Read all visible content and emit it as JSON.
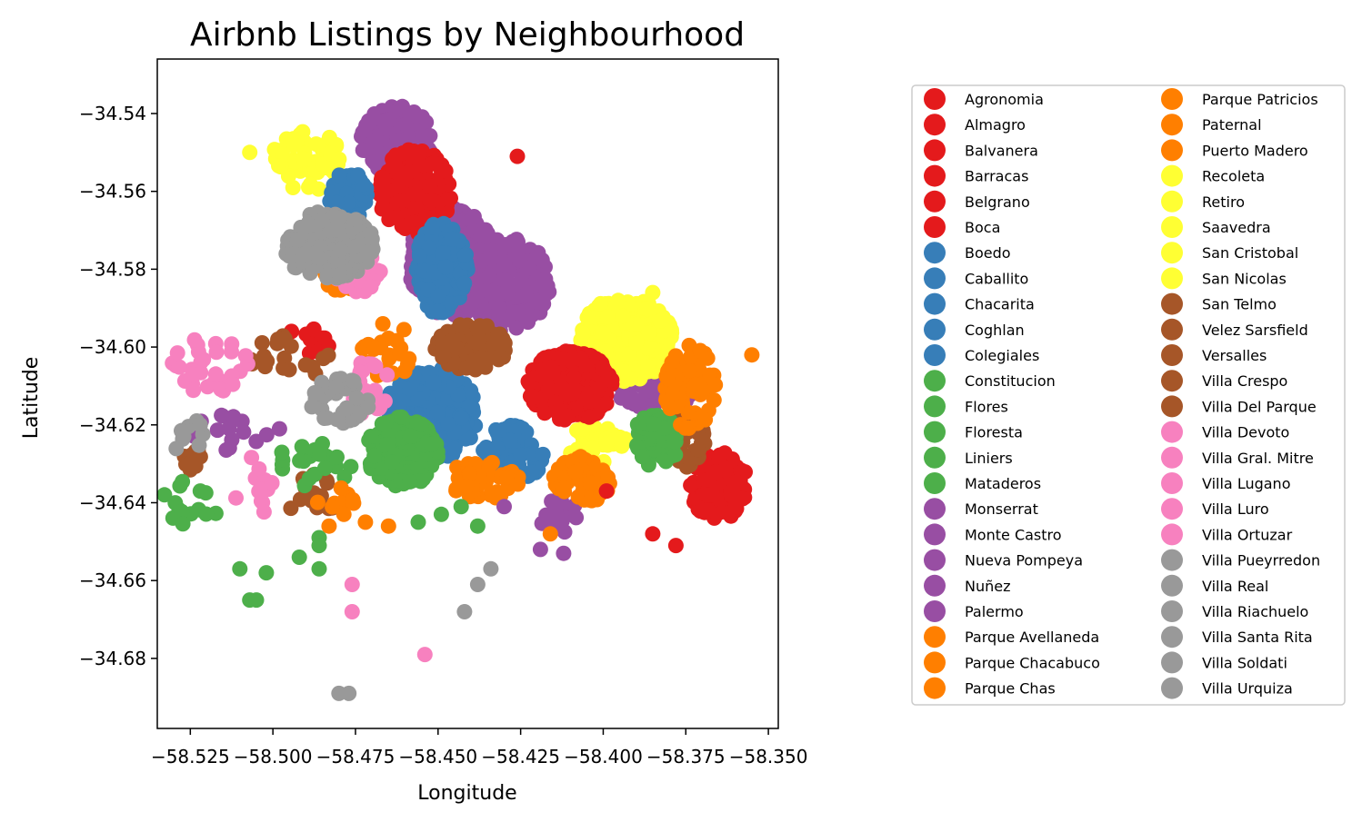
{
  "chart_data": {
    "type": "scatter",
    "title": "Airbnb Listings by Neighbourhood",
    "xlabel": "Longitude",
    "ylabel": "Latitude",
    "xlim": [
      -58.535,
      -58.347
    ],
    "ylim": [
      -34.698,
      -34.526
    ],
    "xticks": [
      -58.525,
      -58.5,
      -58.475,
      -58.45,
      -58.425,
      -58.4,
      -58.375,
      -58.35
    ],
    "xtick_labels": [
      "−58.525",
      "−58.500",
      "−58.475",
      "−58.450",
      "−58.425",
      "−58.400",
      "−58.375",
      "−58.350"
    ],
    "yticks": [
      -34.54,
      -34.56,
      -34.58,
      -34.6,
      -34.62,
      -34.64,
      -34.66,
      -34.68
    ],
    "ytick_labels": [
      "−34.54",
      "−34.56",
      "−34.58",
      "−34.60",
      "−34.62",
      "−34.64",
      "−34.66",
      "−34.68"
    ],
    "grid": false,
    "legend_placement": "outside right, two columns",
    "colors": {
      "red": "#e41a1c",
      "blue": "#377eb8",
      "green": "#4daf4a",
      "purple": "#984ea3",
      "orange": "#ff7f00",
      "yellow": "#ffff33",
      "brown": "#a65628",
      "pink": "#f781bf",
      "grey": "#999999"
    },
    "series": [
      {
        "name": "Agronomia",
        "color": "red"
      },
      {
        "name": "Almagro",
        "color": "red"
      },
      {
        "name": "Balvanera",
        "color": "red"
      },
      {
        "name": "Barracas",
        "color": "red"
      },
      {
        "name": "Belgrano",
        "color": "red"
      },
      {
        "name": "Boca",
        "color": "red"
      },
      {
        "name": "Boedo",
        "color": "blue"
      },
      {
        "name": "Caballito",
        "color": "blue"
      },
      {
        "name": "Chacarita",
        "color": "blue"
      },
      {
        "name": "Coghlan",
        "color": "blue"
      },
      {
        "name": "Colegiales",
        "color": "blue"
      },
      {
        "name": "Constitucion",
        "color": "green"
      },
      {
        "name": "Flores",
        "color": "green"
      },
      {
        "name": "Floresta",
        "color": "green"
      },
      {
        "name": "Liniers",
        "color": "green"
      },
      {
        "name": "Mataderos",
        "color": "green"
      },
      {
        "name": "Monserrat",
        "color": "purple"
      },
      {
        "name": "Monte Castro",
        "color": "purple"
      },
      {
        "name": "Nueva Pompeya",
        "color": "purple"
      },
      {
        "name": "Nuñez",
        "color": "purple"
      },
      {
        "name": "Palermo",
        "color": "purple"
      },
      {
        "name": "Parque Avellaneda",
        "color": "orange"
      },
      {
        "name": "Parque Chacabuco",
        "color": "orange"
      },
      {
        "name": "Parque Chas",
        "color": "orange"
      },
      {
        "name": "Parque Patricios",
        "color": "orange"
      },
      {
        "name": "Paternal",
        "color": "orange"
      },
      {
        "name": "Puerto Madero",
        "color": "orange"
      },
      {
        "name": "Recoleta",
        "color": "yellow"
      },
      {
        "name": "Retiro",
        "color": "yellow"
      },
      {
        "name": "Saavedra",
        "color": "yellow"
      },
      {
        "name": "San Cristobal",
        "color": "yellow"
      },
      {
        "name": "San Nicolas",
        "color": "yellow"
      },
      {
        "name": "San Telmo",
        "color": "brown"
      },
      {
        "name": "Velez Sarsfield",
        "color": "brown"
      },
      {
        "name": "Versalles",
        "color": "brown"
      },
      {
        "name": "Villa Crespo",
        "color": "brown"
      },
      {
        "name": "Villa Del Parque",
        "color": "brown"
      },
      {
        "name": "Villa Devoto",
        "color": "pink"
      },
      {
        "name": "Villa Gral. Mitre",
        "color": "pink"
      },
      {
        "name": "Villa Lugano",
        "color": "pink"
      },
      {
        "name": "Villa Luro",
        "color": "pink"
      },
      {
        "name": "Villa Ortuzar",
        "color": "pink"
      },
      {
        "name": "Villa Pueyrredon",
        "color": "grey"
      },
      {
        "name": "Villa Real",
        "color": "grey"
      },
      {
        "name": "Villa Riachuelo",
        "color": "grey"
      },
      {
        "name": "Villa Santa Rita",
        "color": "grey"
      },
      {
        "name": "Villa Soldati",
        "color": "grey"
      },
      {
        "name": "Villa Urquiza",
        "color": "grey"
      }
    ],
    "clusters": [
      {
        "color": "purple",
        "x": -58.446,
        "y": -34.578,
        "rx": 0.013,
        "ry": 0.014,
        "n": 260
      },
      {
        "color": "purple",
        "x": -58.429,
        "y": -34.584,
        "rx": 0.013,
        "ry": 0.012,
        "n": 180
      },
      {
        "color": "purple",
        "x": -58.4625,
        "y": -34.547,
        "rx": 0.011,
        "ry": 0.009,
        "n": 130
      },
      {
        "color": "purple",
        "x": -58.384,
        "y": -34.612,
        "rx": 0.011,
        "ry": 0.004,
        "n": 60
      },
      {
        "color": "purple",
        "x": -58.414,
        "y": -34.643,
        "rx": 0.006,
        "ry": 0.005,
        "n": 14
      },
      {
        "color": "purple",
        "x": -58.512,
        "y": -34.622,
        "rx": 0.015,
        "ry": 0.006,
        "n": 14
      },
      {
        "color": "yellow",
        "x": -58.393,
        "y": -34.598,
        "rx": 0.014,
        "ry": 0.011,
        "n": 280
      },
      {
        "color": "yellow",
        "x": -58.49,
        "y": -34.552,
        "rx": 0.011,
        "ry": 0.008,
        "n": 50
      },
      {
        "color": "yellow",
        "x": -58.402,
        "y": -34.625,
        "rx": 0.009,
        "ry": 0.005,
        "n": 40
      },
      {
        "color": "red",
        "x": -58.457,
        "y": -34.56,
        "rx": 0.011,
        "ry": 0.011,
        "n": 200
      },
      {
        "color": "red",
        "x": -58.41,
        "y": -34.61,
        "rx": 0.013,
        "ry": 0.009,
        "n": 220
      },
      {
        "color": "red",
        "x": -58.365,
        "y": -34.636,
        "rx": 0.009,
        "ry": 0.009,
        "n": 120
      },
      {
        "color": "red",
        "x": -58.488,
        "y": -34.598,
        "rx": 0.008,
        "ry": 0.004,
        "n": 14
      },
      {
        "color": "blue",
        "x": -58.452,
        "y": -34.617,
        "rx": 0.014,
        "ry": 0.012,
        "n": 260
      },
      {
        "color": "blue",
        "x": -58.449,
        "y": -34.58,
        "rx": 0.008,
        "ry": 0.012,
        "n": 150
      },
      {
        "color": "blue",
        "x": -58.477,
        "y": -34.561,
        "rx": 0.006,
        "ry": 0.006,
        "n": 45
      },
      {
        "color": "blue",
        "x": -58.427,
        "y": -34.627,
        "rx": 0.01,
        "ry": 0.007,
        "n": 70
      },
      {
        "color": "brown",
        "x": -58.44,
        "y": -34.6,
        "rx": 0.011,
        "ry": 0.006,
        "n": 120
      },
      {
        "color": "brown",
        "x": -58.374,
        "y": -34.624,
        "rx": 0.005,
        "ry": 0.007,
        "n": 40
      },
      {
        "color": "brown",
        "x": -58.495,
        "y": -34.603,
        "rx": 0.012,
        "ry": 0.006,
        "n": 22
      },
      {
        "color": "brown",
        "x": -58.488,
        "y": -34.638,
        "rx": 0.008,
        "ry": 0.006,
        "n": 14
      },
      {
        "color": "brown",
        "x": -58.523,
        "y": -34.629,
        "rx": 0.004,
        "ry": 0.003,
        "n": 12
      },
      {
        "color": "green",
        "x": -58.461,
        "y": -34.627,
        "rx": 0.011,
        "ry": 0.009,
        "n": 160
      },
      {
        "color": "green",
        "x": -58.384,
        "y": -34.624,
        "rx": 0.007,
        "ry": 0.007,
        "n": 70
      },
      {
        "color": "green",
        "x": -58.487,
        "y": -34.63,
        "rx": 0.012,
        "ry": 0.006,
        "n": 22
      },
      {
        "color": "green",
        "x": -58.525,
        "y": -34.64,
        "rx": 0.009,
        "ry": 0.006,
        "n": 14
      },
      {
        "color": "orange",
        "x": -58.374,
        "y": -34.61,
        "rx": 0.008,
        "ry": 0.011,
        "n": 60
      },
      {
        "color": "orange",
        "x": -58.406,
        "y": -34.634,
        "rx": 0.009,
        "ry": 0.006,
        "n": 65
      },
      {
        "color": "orange",
        "x": -58.436,
        "y": -34.634,
        "rx": 0.011,
        "ry": 0.005,
        "n": 50
      },
      {
        "color": "orange",
        "x": -58.465,
        "y": -34.601,
        "rx": 0.008,
        "ry": 0.008,
        "n": 30
      },
      {
        "color": "orange",
        "x": -58.479,
        "y": -34.581,
        "rx": 0.006,
        "ry": 0.005,
        "n": 28
      },
      {
        "color": "orange",
        "x": -58.481,
        "y": -34.64,
        "rx": 0.006,
        "ry": 0.004,
        "n": 10
      },
      {
        "color": "pink",
        "x": -58.474,
        "y": -34.581,
        "rx": 0.007,
        "ry": 0.005,
        "n": 50
      },
      {
        "color": "pink",
        "x": -58.471,
        "y": -34.61,
        "rx": 0.006,
        "ry": 0.008,
        "n": 30
      },
      {
        "color": "pink",
        "x": -58.519,
        "y": -34.605,
        "rx": 0.012,
        "ry": 0.008,
        "n": 32
      },
      {
        "color": "pink",
        "x": -58.506,
        "y": -34.636,
        "rx": 0.006,
        "ry": 0.008,
        "n": 14
      },
      {
        "color": "grey",
        "x": -58.483,
        "y": -34.574,
        "rx": 0.014,
        "ry": 0.009,
        "n": 190
      },
      {
        "color": "grey",
        "x": -58.48,
        "y": -34.614,
        "rx": 0.01,
        "ry": 0.006,
        "n": 40
      },
      {
        "color": "grey",
        "x": -58.526,
        "y": -34.623,
        "rx": 0.005,
        "ry": 0.005,
        "n": 10
      }
    ],
    "outliers": [
      {
        "color": "red",
        "x": -58.426,
        "y": -34.551
      },
      {
        "color": "red",
        "x": -58.378,
        "y": -34.651
      },
      {
        "color": "red",
        "x": -58.385,
        "y": -34.648
      },
      {
        "color": "red",
        "x": -58.399,
        "y": -34.637
      },
      {
        "color": "purple",
        "x": -58.43,
        "y": -34.641
      },
      {
        "color": "purple",
        "x": -58.412,
        "y": -34.653
      },
      {
        "color": "purple",
        "x": -58.419,
        "y": -34.652
      },
      {
        "color": "purple",
        "x": -58.498,
        "y": -34.621
      },
      {
        "color": "green",
        "x": -58.486,
        "y": -34.657
      },
      {
        "color": "green",
        "x": -58.502,
        "y": -34.658
      },
      {
        "color": "green",
        "x": -58.51,
        "y": -34.657
      },
      {
        "color": "green",
        "x": -58.507,
        "y": -34.665
      },
      {
        "color": "green",
        "x": -58.505,
        "y": -34.665
      },
      {
        "color": "green",
        "x": -58.486,
        "y": -34.649
      },
      {
        "color": "green",
        "x": -58.486,
        "y": -34.651
      },
      {
        "color": "green",
        "x": -58.492,
        "y": -34.654
      },
      {
        "color": "green",
        "x": -58.449,
        "y": -34.643
      },
      {
        "color": "green",
        "x": -58.456,
        "y": -34.645
      },
      {
        "color": "green",
        "x": -58.443,
        "y": -34.641
      },
      {
        "color": "green",
        "x": -58.438,
        "y": -34.646
      },
      {
        "color": "orange",
        "x": -58.465,
        "y": -34.646
      },
      {
        "color": "orange",
        "x": -58.472,
        "y": -34.645
      },
      {
        "color": "orange",
        "x": -58.483,
        "y": -34.646
      },
      {
        "color": "orange",
        "x": -58.416,
        "y": -34.648
      },
      {
        "color": "orange",
        "x": -58.355,
        "y": -34.602
      },
      {
        "color": "pink",
        "x": -58.476,
        "y": -34.661
      },
      {
        "color": "pink",
        "x": -58.476,
        "y": -34.668
      },
      {
        "color": "pink",
        "x": -58.454,
        "y": -34.679
      },
      {
        "color": "grey",
        "x": -58.434,
        "y": -34.657
      },
      {
        "color": "grey",
        "x": -58.438,
        "y": -34.661
      },
      {
        "color": "grey",
        "x": -58.442,
        "y": -34.668
      },
      {
        "color": "grey",
        "x": -58.48,
        "y": -34.689
      },
      {
        "color": "grey",
        "x": -58.477,
        "y": -34.689
      },
      {
        "color": "grey",
        "x": -58.522,
        "y": -34.62
      },
      {
        "color": "yellow",
        "x": -58.507,
        "y": -34.55
      },
      {
        "color": "yellow",
        "x": -58.385,
        "y": -34.586
      }
    ]
  }
}
